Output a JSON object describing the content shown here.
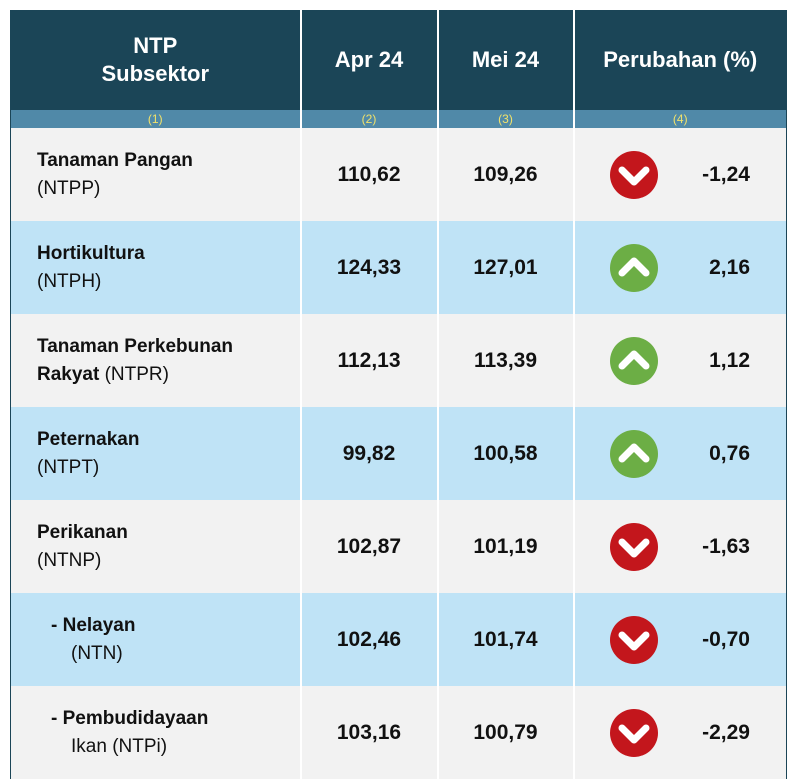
{
  "table": {
    "header": {
      "subsector": [
        "NTP",
        "Subsektor"
      ],
      "apr": "Apr 24",
      "mei": "Mei 24",
      "change": "Perubahan (%)"
    },
    "numbers": [
      "(1)",
      "(2)",
      "(3)",
      "(4)"
    ],
    "rows": [
      {
        "label": [
          "Tanaman Pangan"
        ],
        "code": "(NTPP)",
        "apr": "110,62",
        "mei": "109,26",
        "change": "-1,24"
      },
      {
        "label": [
          "Hortikultura"
        ],
        "code": "(NTPH)",
        "apr": "124,33",
        "mei": "127,01",
        "change": "2,16"
      },
      {
        "label": [
          "Tanaman Perkebunan",
          "Rakyat"
        ],
        "code": "(NTPR)",
        "apr": "112,13",
        "mei": "113,39",
        "change": "1,12"
      },
      {
        "label": [
          "Peternakan"
        ],
        "code": "(NTPT)",
        "apr": "99,82",
        "mei": "100,58",
        "change": "0,76"
      },
      {
        "label": [
          "Perikanan"
        ],
        "code": "(NTNP)",
        "apr": "102,87",
        "mei": "101,19",
        "change": "-1,63"
      },
      {
        "label": [
          "- Nelayan"
        ],
        "code": "(NTN)",
        "apr": "102,46",
        "mei": "101,74",
        "change": "-0,70"
      },
      {
        "label": [
          "- Pembudidayaan"
        ],
        "code": "Ikan (NTPi)",
        "apr": "103,16",
        "mei": "100,79",
        "change": "-2,29"
      }
    ]
  }
}
